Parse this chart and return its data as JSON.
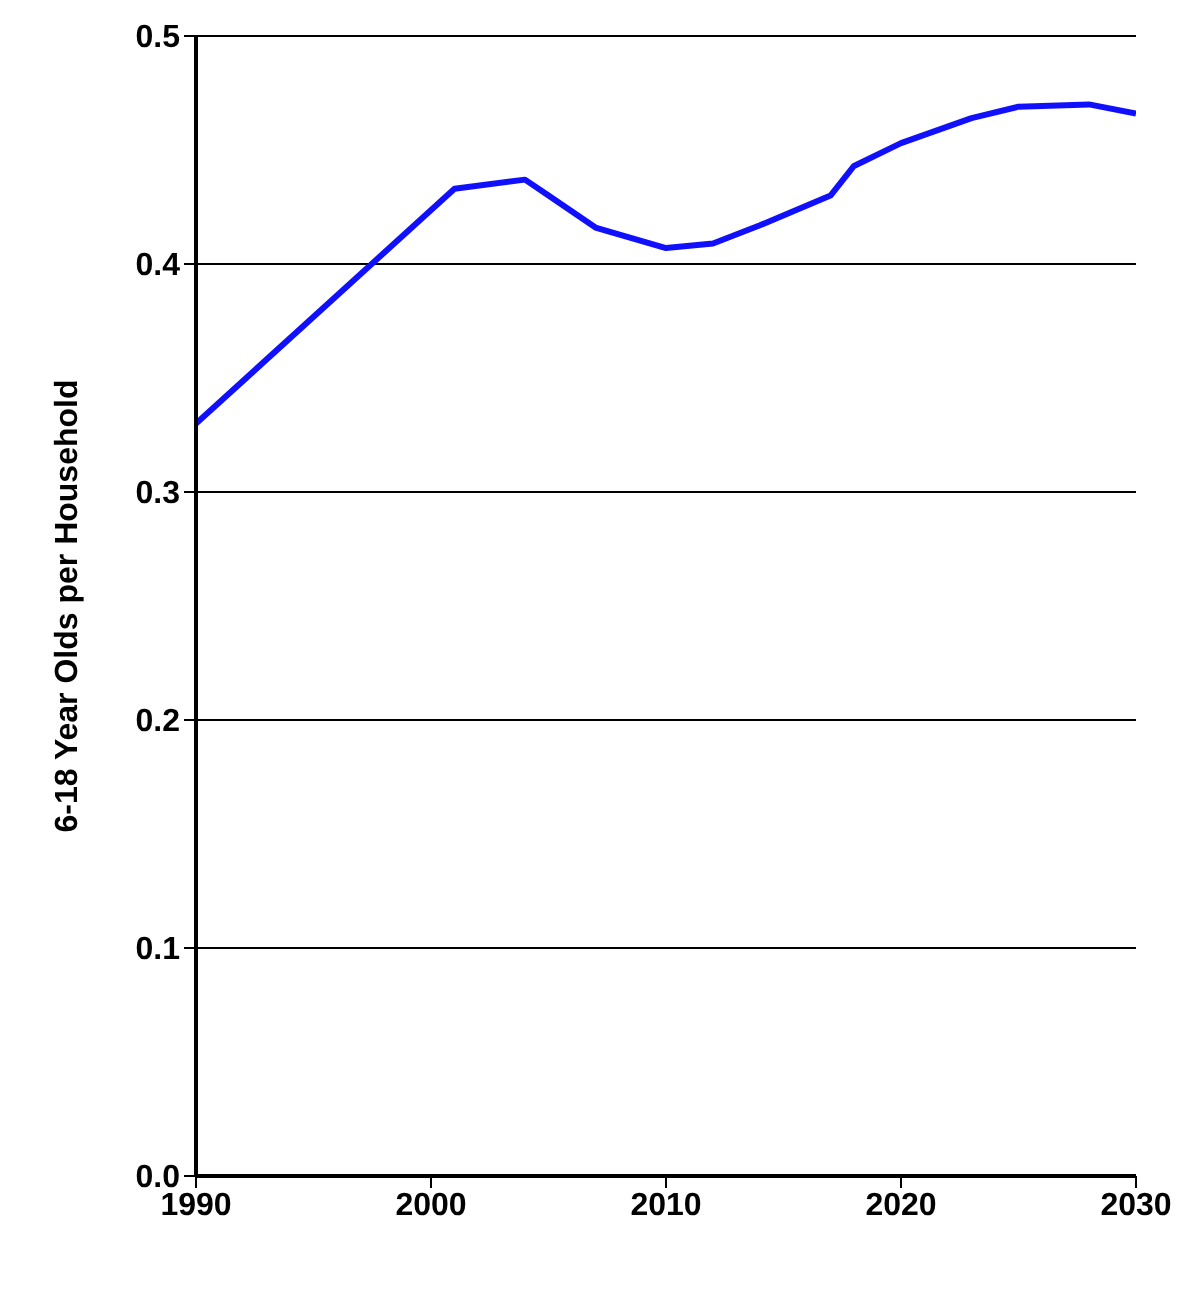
{
  "chart_data": {
    "type": "line",
    "ylabel": "6-18 Year Olds per Household",
    "x": [
      1990,
      2001,
      2004,
      2005,
      2007,
      2010,
      2012,
      2014,
      2017,
      2018,
      2020,
      2023,
      2025,
      2028,
      2030
    ],
    "series": [
      {
        "color": "#1010ff",
        "values": [
          0.33,
          0.433,
          0.437,
          0.43,
          0.416,
          0.407,
          0.409,
          0.417,
          0.43,
          0.443,
          0.453,
          0.464,
          0.469,
          0.47,
          0.466
        ]
      }
    ],
    "xlim": [
      1990,
      2030
    ],
    "xticks": [
      1990,
      2000,
      2010,
      2020,
      2030
    ],
    "ylim": [
      0,
      0.5
    ],
    "yticks": [
      {
        "value": 0,
        "label": "0.0"
      },
      {
        "value": 0.1,
        "label": "0.1"
      },
      {
        "value": 0.2,
        "label": "0.2"
      },
      {
        "value": 0.3,
        "label": "0.3"
      },
      {
        "value": 0.4,
        "label": "0.4"
      },
      {
        "value": 0.5,
        "label": "0.5"
      }
    ],
    "grid": "y",
    "marker": "none",
    "line_style": "solid",
    "legend": false
  }
}
